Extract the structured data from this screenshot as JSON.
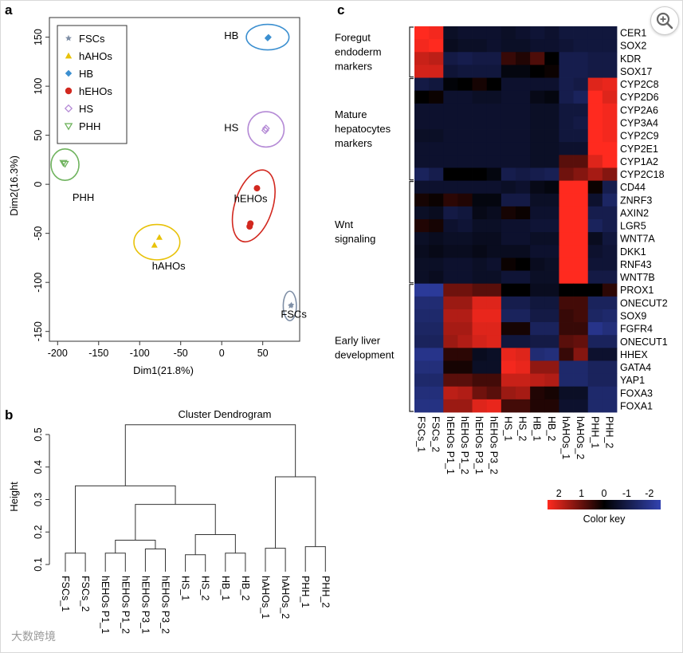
{
  "panels": {
    "a": "a",
    "b": "b",
    "c": "c"
  },
  "colors": {
    "FSCs": "#7f8fa6",
    "hAHOs": "#e8c20a",
    "HB": "#3b8fd0",
    "hEHOs": "#d2281f",
    "HS": "#b58bd6",
    "PHH": "#6fb35e"
  },
  "scatter": {
    "type": "scatter",
    "xlabel": "Dim1(21.8%)",
    "ylabel": "Dim2(16.3%)",
    "xlim": [
      -210,
      95
    ],
    "ylim": [
      -160,
      170
    ],
    "xticks": [
      -200,
      -150,
      -100,
      -50,
      0,
      50
    ],
    "yticks": [
      -150,
      -100,
      -50,
      0,
      50,
      100,
      150
    ],
    "legend_position": "top-left",
    "legend": [
      "FSCs",
      "hAHOs",
      "HB",
      "hEHOs",
      "HS",
      "PHH"
    ],
    "groups": [
      {
        "name": "FSCs",
        "label": "FSCs",
        "marker": "star",
        "points": [
          [
            84,
            -124
          ],
          [
            85,
            -123
          ]
        ],
        "ellipse": {
          "cx": 83,
          "cy": -124,
          "rx": 8,
          "ry": 15
        }
      },
      {
        "name": "hAHOs",
        "label": "hAHOs",
        "marker": "triangle",
        "points": [
          [
            -76,
            -54
          ],
          [
            -82,
            -62
          ]
        ],
        "ellipse": {
          "cx": -79,
          "cy": -59,
          "rx": 28,
          "ry": 18
        }
      },
      {
        "name": "HB",
        "label": "HB",
        "marker": "diamond",
        "points": [
          [
            57,
            150
          ],
          [
            56,
            149
          ]
        ],
        "ellipse": {
          "cx": 56,
          "cy": 150,
          "rx": 26,
          "ry": 13
        }
      },
      {
        "name": "hEHOs",
        "label": "hEHOs",
        "marker": "circle",
        "points": [
          [
            43,
            -4
          ],
          [
            35,
            -40
          ],
          [
            34,
            -43
          ]
        ],
        "ellipse": {
          "cx": 39,
          "cy": -22,
          "rx": 23,
          "ry": 38
        }
      },
      {
        "name": "HS",
        "label": "HS",
        "marker": "diamond-open",
        "points": [
          [
            54,
            57
          ],
          [
            53,
            55
          ]
        ],
        "ellipse": {
          "cx": 54,
          "cy": 56,
          "rx": 22,
          "ry": 18
        }
      },
      {
        "name": "PHH",
        "label": "PHH",
        "marker": "triangle-down-open",
        "points": [
          [
            -191,
            21
          ],
          [
            -193,
            22
          ]
        ],
        "ellipse": {
          "cx": -191,
          "cy": 20,
          "rx": 17,
          "ry": 16
        }
      }
    ],
    "point_labels": [
      {
        "text": "HB",
        "x": 3,
        "y": 148
      },
      {
        "text": "HS",
        "x": 3,
        "y": 54
      },
      {
        "text": "PHH",
        "x": -182,
        "y": -17
      },
      {
        "text": "hEHOs",
        "x": 15,
        "y": -18
      },
      {
        "text": "hAHOs",
        "x": -85,
        "y": -87
      },
      {
        "text": "FSCs",
        "x": 72,
        "y": -136
      }
    ]
  },
  "dendrogram": {
    "type": "dendrogram",
    "title": "Cluster Dendrogram",
    "ylabel": "Height",
    "ylim": [
      0.1,
      0.55
    ],
    "yticks": [
      "0.1",
      "0.2",
      "0.3",
      "0.4",
      "0.5"
    ],
    "leaves": [
      "FSCs_1",
      "FSCs_2",
      "hEHOs P1_1",
      "hEHOs P1_2",
      "hEHOs P3_1",
      "hEHOs P3_2",
      "HS_1",
      "HS_2",
      "HB_1",
      "HB_2",
      "hAHOs_1",
      "hAHOs_2",
      "PHH_1",
      "PHH_2"
    ],
    "merges": [
      [
        0,
        1,
        0.135
      ],
      [
        2,
        3,
        0.135
      ],
      [
        4,
        5,
        0.148
      ],
      [
        6,
        7,
        0.13
      ],
      [
        8,
        9,
        0.135
      ],
      [
        10,
        11,
        0.15
      ],
      [
        12,
        13,
        0.155
      ],
      [
        15,
        16,
        0.175
      ],
      [
        17,
        18,
        0.192
      ],
      [
        21,
        22,
        0.285
      ],
      [
        19,
        20,
        0.37
      ],
      [
        14,
        23,
        0.342
      ],
      [
        25,
        24,
        0.53
      ]
    ]
  },
  "heatmap": {
    "type": "heatmap",
    "columns": [
      "FSCs_1",
      "FSCs_2",
      "hEHOs P1_1",
      "hEHOs P1_2",
      "hEHOs P3_1",
      "hEHOs P3_2",
      "HS_1",
      "HS_2",
      "HB_1",
      "HB_2",
      "hAHOs_1",
      "hAHOs_2",
      "PHH_1",
      "PHH_2"
    ],
    "genes": [
      "CER1",
      "SOX2",
      "KDR",
      "SOX17",
      "CYP2C8",
      "CYP2D6",
      "CYP2A6",
      "CYP3A4",
      "CYP2C9",
      "CYP2E1",
      "CYP1A2",
      "CYP2C18",
      "CD44",
      "ZNRF3",
      "AXIN2",
      "LGR5",
      "WNT7A",
      "DKK1",
      "RNF43",
      "WNT7B",
      "PROX1",
      "ONECUT2",
      "SOX9",
      "FGFR4",
      "ONECUT1",
      "HHEX",
      "GATA4",
      "YAP1",
      "FOXA3",
      "FOXA1"
    ],
    "groups": [
      {
        "label": "Foregut\nendoderm\nmarkers",
        "rows": [
          0,
          3
        ]
      },
      {
        "label": "Mature\nhepatocytes\nmarkers",
        "rows": [
          4,
          11
        ]
      },
      {
        "label": "Wnt\nsignaling",
        "rows": [
          12,
          19
        ]
      },
      {
        "label": "Early liver\ndevelopment",
        "rows": [
          20,
          29
        ]
      }
    ],
    "values": [
      [
        2.3,
        2.2,
        -0.5,
        -0.6,
        -0.6,
        -0.6,
        -0.5,
        -0.6,
        -0.7,
        -0.6,
        -0.8,
        -0.8,
        -0.8,
        -0.8
      ],
      [
        2.2,
        2.4,
        -0.4,
        -0.5,
        -0.5,
        -0.6,
        -0.5,
        -0.5,
        -0.6,
        -0.6,
        -0.7,
        -0.8,
        -0.8,
        -0.8
      ],
      [
        1.8,
        1.7,
        -0.9,
        -1.0,
        -0.9,
        -0.9,
        0.5,
        0.3,
        0.7,
        0.0,
        -1.0,
        -1.0,
        -0.9,
        -0.9
      ],
      [
        1.9,
        1.9,
        -0.7,
        -0.8,
        -0.8,
        -0.8,
        -0.2,
        -0.2,
        0.0,
        0.1,
        -1.0,
        -1.0,
        -0.9,
        -0.9
      ],
      [
        -0.9,
        -0.8,
        -0.1,
        0.0,
        0.2,
        0.0,
        -0.6,
        -0.6,
        -0.6,
        -0.6,
        -1.0,
        -0.9,
        2.0,
        2.1
      ],
      [
        0.0,
        0.1,
        -0.6,
        -0.6,
        -0.5,
        -0.5,
        -0.6,
        -0.6,
        -0.3,
        -0.2,
        -1.0,
        -1.2,
        2.4,
        2.0
      ],
      [
        -0.6,
        -0.6,
        -0.6,
        -0.6,
        -0.6,
        -0.6,
        -0.6,
        -0.6,
        -0.5,
        -0.5,
        -0.8,
        -0.8,
        2.3,
        2.2
      ],
      [
        -0.6,
        -0.6,
        -0.6,
        -0.6,
        -0.6,
        -0.6,
        -0.6,
        -0.6,
        -0.5,
        -0.5,
        -0.8,
        -0.9,
        2.3,
        2.2
      ],
      [
        -0.5,
        -0.5,
        -0.6,
        -0.6,
        -0.6,
        -0.6,
        -0.6,
        -0.6,
        -0.5,
        -0.5,
        -0.8,
        -0.8,
        2.3,
        2.2
      ],
      [
        -0.6,
        -0.6,
        -0.6,
        -0.6,
        -0.6,
        -0.6,
        -0.6,
        -0.6,
        -0.5,
        -0.5,
        -0.6,
        -0.6,
        2.4,
        2.3
      ],
      [
        -0.6,
        -0.6,
        -0.6,
        -0.6,
        -0.6,
        -0.6,
        -0.6,
        -0.6,
        -0.5,
        -0.5,
        0.8,
        0.8,
        2.0,
        2.3
      ],
      [
        -1.2,
        -1.0,
        0.0,
        0.0,
        0.0,
        -0.2,
        -1.0,
        -0.9,
        -1.0,
        -1.1,
        1.0,
        1.2,
        1.5,
        1.2
      ],
      [
        -0.6,
        -0.6,
        -0.6,
        -0.6,
        -0.6,
        -0.6,
        -0.5,
        -0.6,
        -0.3,
        -0.2,
        2.4,
        2.3,
        0.1,
        -1.0
      ],
      [
        0.2,
        0.1,
        0.4,
        0.3,
        -0.2,
        -0.2,
        -0.9,
        -0.9,
        -0.5,
        -0.5,
        2.3,
        2.3,
        -0.6,
        -1.3
      ],
      [
        -0.5,
        -0.4,
        -0.9,
        -0.8,
        -0.3,
        -0.4,
        0.2,
        0.1,
        -0.6,
        -0.6,
        2.3,
        2.3,
        -1.0,
        -1.0
      ],
      [
        0.3,
        0.2,
        -0.6,
        -0.7,
        -0.5,
        -0.5,
        -0.6,
        -0.6,
        -0.7,
        -0.7,
        2.3,
        2.4,
        -1.2,
        -1.0
      ],
      [
        -0.5,
        -0.4,
        -0.5,
        -0.5,
        -0.4,
        -0.4,
        -0.6,
        -0.6,
        -0.5,
        -0.5,
        2.4,
        2.3,
        -0.4,
        -0.8
      ],
      [
        -0.4,
        -0.3,
        -0.4,
        -0.4,
        -0.3,
        -0.4,
        -0.4,
        -0.4,
        -0.6,
        -0.6,
        2.3,
        2.3,
        -0.6,
        -0.7
      ],
      [
        -0.5,
        -0.5,
        -0.6,
        -0.6,
        -0.5,
        -0.6,
        0.1,
        0.0,
        -0.4,
        -0.5,
        2.4,
        2.4,
        -0.7,
        -0.7
      ],
      [
        -0.5,
        -0.4,
        -0.6,
        -0.6,
        -0.5,
        -0.5,
        -0.7,
        -0.7,
        -0.5,
        -0.5,
        2.4,
        2.4,
        -0.9,
        -0.9
      ],
      [
        -2.0,
        -2.0,
        1.0,
        1.0,
        0.8,
        0.8,
        0.0,
        0.0,
        -0.4,
        -0.4,
        0.0,
        0.0,
        0.0,
        0.4
      ],
      [
        -1.5,
        -1.5,
        1.4,
        1.4,
        2.0,
        2.0,
        -1.0,
        -1.0,
        -0.8,
        -0.8,
        0.6,
        0.6,
        -1.2,
        -1.2
      ],
      [
        -1.4,
        -1.4,
        1.6,
        1.6,
        2.1,
        2.1,
        -1.2,
        -1.2,
        -0.9,
        -0.9,
        0.5,
        0.6,
        -1.3,
        -1.4
      ],
      [
        -1.3,
        -1.3,
        1.5,
        1.5,
        2.0,
        2.0,
        0.2,
        0.2,
        -1.2,
        -1.2,
        0.5,
        0.5,
        -1.8,
        -1.6
      ],
      [
        -1.2,
        -1.2,
        1.4,
        1.6,
        1.9,
        2.0,
        -0.8,
        -0.8,
        -0.9,
        -0.9,
        0.8,
        0.9,
        -1.2,
        -1.2
      ],
      [
        -1.8,
        -1.8,
        0.4,
        0.4,
        -0.4,
        -0.5,
        2.1,
        2.0,
        -1.5,
        -1.6,
        0.5,
        1.2,
        -0.6,
        -0.6
      ],
      [
        -1.6,
        -1.6,
        0.2,
        0.2,
        -0.5,
        -0.5,
        2.2,
        2.1,
        1.3,
        1.3,
        -1.4,
        -1.4,
        -1.2,
        -1.2
      ],
      [
        -1.4,
        -1.4,
        0.8,
        0.8,
        0.6,
        0.6,
        1.8,
        1.8,
        1.7,
        1.6,
        -1.4,
        -1.4,
        -1.2,
        -1.2
      ],
      [
        -1.6,
        -1.6,
        1.7,
        1.6,
        1.0,
        0.8,
        1.4,
        1.5,
        0.3,
        0.2,
        -0.5,
        -0.5,
        -1.4,
        -1.4
      ],
      [
        -1.7,
        -1.7,
        1.4,
        1.4,
        2.0,
        2.1,
        0.6,
        0.6,
        0.3,
        0.3,
        -0.6,
        -0.6,
        -1.4,
        -1.4
      ]
    ],
    "colorkey": {
      "title": "Color key",
      "ticks": [
        "2",
        "1",
        "0",
        "-1",
        "-2"
      ],
      "range": [
        2.5,
        -2.5
      ],
      "colors": [
        "#ff2a1f",
        "#000000",
        "#3243b0"
      ]
    }
  },
  "watermark": "大数跨境"
}
